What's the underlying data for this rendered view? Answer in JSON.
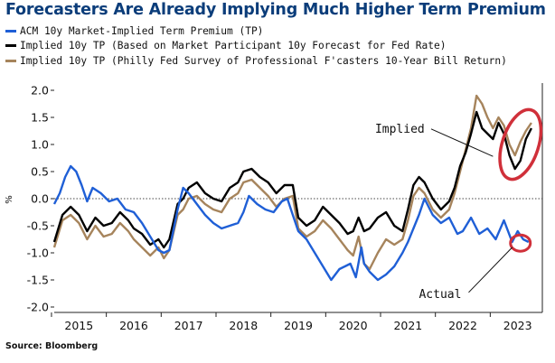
{
  "title": "Forecasters Are Already Implying Much Higher Term Premium",
  "legend": [
    {
      "label": "ACM 10y Market-Implied Term Premium (TP)",
      "color": "#1f5fd6"
    },
    {
      "label": "Implied 10y TP (Based on Market Participant 10y Forecast for Fed Rate)",
      "color": "#000000"
    },
    {
      "label": "Implied 10y TP (Philly Fed Survey of Professional F'casters 10-Year Bill Return)",
      "color": "#a6845c"
    }
  ],
  "source": "Source: Bloomberg",
  "annotations": {
    "implied": "Implied",
    "actual": "Actual"
  },
  "unit_label": "%",
  "highlight_color": "#d0303a",
  "chart_data": {
    "type": "line",
    "ylim": [
      -2.1,
      2.1
    ],
    "xlim": [
      2014.55,
      2023.45
    ],
    "y_ticks": [
      "2.0",
      "1.5",
      "1.0",
      "0.5",
      "0.0",
      "-0.5",
      "-1.0",
      "-1.5",
      "-2.0"
    ],
    "y_tick_values": [
      2.0,
      1.5,
      1.0,
      0.5,
      0.0,
      -0.5,
      -1.0,
      -1.5,
      -2.0
    ],
    "x_ticks": [
      "2015",
      "2016",
      "2017",
      "2018",
      "2019",
      "2020",
      "2021",
      "2022",
      "2023"
    ],
    "x_tick_values": [
      2015.0,
      2016.0,
      2017.0,
      2018.0,
      2019.0,
      2020.0,
      2021.0,
      2022.0,
      2023.0
    ],
    "grid": false,
    "legend_position": "top-left",
    "series": [
      {
        "name": "ACM 10y Market-Implied Term Premium (TP)",
        "color": "#1f5fd6",
        "x": [
          2014.55,
          2014.65,
          2014.75,
          2014.85,
          2014.95,
          2015.05,
          2015.15,
          2015.25,
          2015.4,
          2015.55,
          2015.7,
          2015.85,
          2016.0,
          2016.15,
          2016.3,
          2016.45,
          2016.55,
          2016.65,
          2016.8,
          2016.9,
          2017.0,
          2017.15,
          2017.3,
          2017.45,
          2017.6,
          2017.75,
          2017.9,
          2018.0,
          2018.1,
          2018.25,
          2018.4,
          2018.55,
          2018.7,
          2018.8,
          2018.9,
          2019.0,
          2019.15,
          2019.3,
          2019.45,
          2019.6,
          2019.75,
          2019.85,
          2019.95,
          2020.05,
          2020.15,
          2020.2,
          2020.3,
          2020.45,
          2020.6,
          2020.75,
          2020.9,
          2021.0,
          2021.1,
          2021.2,
          2021.3,
          2021.45,
          2021.6,
          2021.75,
          2021.9,
          2022.0,
          2022.15,
          2022.3,
          2022.45,
          2022.6,
          2022.75,
          2022.9,
          2023.0,
          2023.1,
          2023.2
        ],
        "y": [
          -0.1,
          0.1,
          0.4,
          0.6,
          0.5,
          0.25,
          -0.05,
          0.2,
          0.1,
          -0.05,
          0.0,
          -0.2,
          -0.25,
          -0.45,
          -0.7,
          -0.95,
          -1.0,
          -0.95,
          -0.2,
          0.2,
          0.1,
          -0.1,
          -0.3,
          -0.45,
          -0.55,
          -0.5,
          -0.45,
          -0.25,
          0.05,
          -0.1,
          -0.2,
          -0.25,
          -0.05,
          0.0,
          -0.3,
          -0.6,
          -0.75,
          -1.0,
          -1.25,
          -1.5,
          -1.3,
          -1.25,
          -1.2,
          -1.45,
          -0.9,
          -1.2,
          -1.35,
          -1.5,
          -1.4,
          -1.25,
          -1.0,
          -0.8,
          -0.55,
          -0.3,
          0.0,
          -0.3,
          -0.45,
          -0.35,
          -0.65,
          -0.6,
          -0.35,
          -0.65,
          -0.55,
          -0.75,
          -0.4,
          -0.8,
          -0.6,
          -0.75,
          -0.8
        ]
      },
      {
        "name": "Implied 10y TP (Based on Market Participant 10y Forecast for Fed Rate)",
        "color": "#000000",
        "x": [
          2014.55,
          2014.7,
          2014.85,
          2015.0,
          2015.15,
          2015.3,
          2015.45,
          2015.6,
          2015.75,
          2015.9,
          2016.0,
          2016.15,
          2016.3,
          2016.45,
          2016.55,
          2016.65,
          2016.8,
          2016.9,
          2017.0,
          2017.15,
          2017.3,
          2017.45,
          2017.6,
          2017.75,
          2017.9,
          2018.0,
          2018.15,
          2018.3,
          2018.45,
          2018.6,
          2018.75,
          2018.9,
          2019.0,
          2019.15,
          2019.3,
          2019.45,
          2019.6,
          2019.75,
          2019.9,
          2020.0,
          2020.1,
          2020.2,
          2020.3,
          2020.45,
          2020.6,
          2020.75,
          2020.9,
          2021.0,
          2021.1,
          2021.2,
          2021.3,
          2021.45,
          2021.6,
          2021.75,
          2021.85,
          2021.95,
          2022.05,
          2022.15,
          2022.25,
          2022.35,
          2022.45,
          2022.55,
          2022.65,
          2022.75,
          2022.85,
          2022.95,
          2023.05,
          2023.15,
          2023.25
        ],
        "y": [
          -0.8,
          -0.3,
          -0.15,
          -0.3,
          -0.6,
          -0.35,
          -0.5,
          -0.45,
          -0.25,
          -0.4,
          -0.55,
          -0.65,
          -0.85,
          -0.75,
          -0.9,
          -0.75,
          -0.1,
          0.0,
          0.2,
          0.3,
          0.1,
          0.0,
          -0.05,
          0.2,
          0.3,
          0.5,
          0.55,
          0.4,
          0.3,
          0.1,
          0.25,
          0.25,
          -0.35,
          -0.5,
          -0.4,
          -0.15,
          -0.3,
          -0.45,
          -0.65,
          -0.6,
          -0.35,
          -0.6,
          -0.55,
          -0.35,
          -0.25,
          -0.5,
          -0.6,
          -0.2,
          0.25,
          0.4,
          0.3,
          0.0,
          -0.2,
          -0.05,
          0.2,
          0.6,
          0.85,
          1.2,
          1.6,
          1.3,
          1.2,
          1.1,
          1.4,
          1.2,
          0.8,
          0.55,
          0.7,
          1.1,
          1.3
        ]
      },
      {
        "name": "Implied 10y TP (Philly Fed Survey of Professional F'casters 10-Year Bill Return)",
        "color": "#a6845c",
        "x": [
          2014.55,
          2014.7,
          2014.85,
          2015.0,
          2015.15,
          2015.3,
          2015.45,
          2015.6,
          2015.75,
          2015.9,
          2016.0,
          2016.15,
          2016.3,
          2016.45,
          2016.55,
          2016.65,
          2016.8,
          2016.9,
          2017.0,
          2017.15,
          2017.3,
          2017.45,
          2017.6,
          2017.75,
          2017.9,
          2018.0,
          2018.15,
          2018.3,
          2018.45,
          2018.6,
          2018.75,
          2018.9,
          2019.0,
          2019.15,
          2019.3,
          2019.45,
          2019.6,
          2019.75,
          2019.9,
          2020.0,
          2020.1,
          2020.2,
          2020.3,
          2020.45,
          2020.6,
          2020.75,
          2020.9,
          2021.0,
          2021.1,
          2021.2,
          2021.3,
          2021.45,
          2021.6,
          2021.75,
          2021.85,
          2021.95,
          2022.05,
          2022.15,
          2022.25,
          2022.35,
          2022.45,
          2022.55,
          2022.65,
          2022.75,
          2022.85,
          2022.95,
          2023.05,
          2023.15,
          2023.25
        ],
        "y": [
          -0.9,
          -0.4,
          -0.3,
          -0.45,
          -0.75,
          -0.5,
          -0.7,
          -0.65,
          -0.45,
          -0.6,
          -0.75,
          -0.9,
          -1.05,
          -0.9,
          -1.1,
          -0.95,
          -0.3,
          -0.2,
          0.0,
          0.05,
          -0.1,
          -0.2,
          -0.25,
          0.0,
          0.1,
          0.3,
          0.35,
          0.2,
          0.05,
          -0.15,
          0.0,
          0.05,
          -0.55,
          -0.7,
          -0.6,
          -0.4,
          -0.55,
          -0.75,
          -0.95,
          -1.05,
          -0.7,
          -1.2,
          -1.3,
          -1.0,
          -0.75,
          -0.85,
          -0.75,
          -0.4,
          0.05,
          0.2,
          0.1,
          -0.2,
          -0.35,
          -0.2,
          0.1,
          0.5,
          0.9,
          1.3,
          1.9,
          1.75,
          1.5,
          1.3,
          1.5,
          1.35,
          1.0,
          0.8,
          1.05,
          1.25,
          1.4
        ]
      }
    ]
  }
}
